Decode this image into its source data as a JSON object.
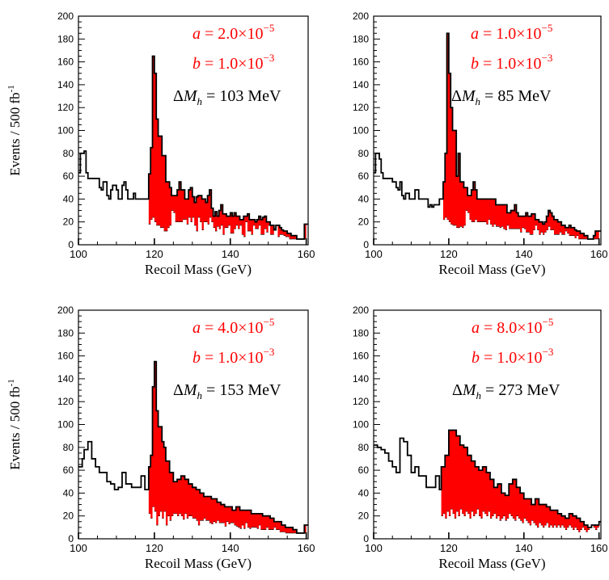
{
  "chart_data": [
    {
      "type": "histogram",
      "id": "tl",
      "xlabel": "Recoil Mass (GeV)",
      "ylabel": "Events / 500 fb",
      "ylabel_sup": "-1",
      "xlim": [
        100,
        160.5
      ],
      "ylim": [
        0,
        200
      ],
      "xticks": [
        100,
        120,
        140,
        160
      ],
      "yticks": [
        0,
        20,
        40,
        60,
        80,
        100,
        120,
        140,
        160,
        180,
        200
      ],
      "annotations": {
        "a_sym": "a",
        "a_eq": " = 2.0×10",
        "a_exp": "−5",
        "b_sym": "b",
        "b_eq": " = 1.0×10",
        "b_exp": "−3",
        "dm_pre": "ΔM",
        "dm_sub": "h",
        "dm_eq": " = 103 MeV"
      },
      "bin_width": 0.5,
      "signal_range": [
        118,
        160.5
      ],
      "total": [
        63,
        80,
        80,
        82,
        63,
        58,
        58,
        58,
        58,
        58,
        58,
        50,
        48,
        55,
        55,
        43,
        40,
        48,
        52,
        52,
        48,
        40,
        40,
        52,
        55,
        48,
        40,
        40,
        40,
        45,
        40,
        40,
        40,
        40,
        40,
        40,
        40,
        62,
        85,
        165,
        150,
        110,
        95,
        95,
        78,
        78,
        55,
        55,
        50,
        43,
        43,
        43,
        48,
        55,
        48,
        48,
        40,
        40,
        48,
        50,
        42,
        37,
        42,
        43,
        43,
        40,
        40,
        37,
        43,
        48,
        32,
        25,
        29,
        25,
        30,
        35,
        27,
        27,
        25,
        25,
        28,
        25,
        28,
        25,
        25,
        22,
        22,
        25,
        25,
        27,
        22,
        22,
        22,
        20,
        22,
        25,
        22,
        24,
        25,
        20,
        20,
        17,
        17,
        13,
        17,
        17,
        15,
        13,
        12,
        12,
        10,
        10,
        8,
        8,
        8,
        5,
        5,
        5,
        5,
        18,
        18
      ],
      "background": [
        63,
        80,
        80,
        82,
        63,
        58,
        58,
        58,
        58,
        58,
        58,
        50,
        48,
        55,
        55,
        43,
        40,
        48,
        52,
        52,
        48,
        40,
        40,
        52,
        55,
        48,
        40,
        40,
        40,
        45,
        40,
        40,
        40,
        40,
        40,
        40,
        40,
        18,
        22,
        24,
        20,
        17,
        17,
        15,
        15,
        12,
        12,
        15,
        17,
        30,
        28,
        20,
        20,
        20,
        20,
        22,
        22,
        18,
        24,
        20,
        24,
        17,
        12,
        24,
        20,
        13,
        20,
        20,
        18,
        24,
        20,
        15,
        12,
        16,
        14,
        17,
        9,
        15,
        15,
        17,
        10,
        10,
        14,
        17,
        14,
        17,
        9,
        7,
        20,
        12,
        12,
        9,
        17,
        14,
        14,
        17,
        9,
        9,
        14,
        11,
        17,
        9,
        9,
        14,
        17,
        7,
        9,
        9,
        8,
        7,
        7,
        5,
        5,
        5,
        5,
        5,
        5,
        5,
        5,
        5,
        18
      ]
    },
    {
      "type": "histogram",
      "id": "tr",
      "xlabel": "Recoil Mass (GeV)",
      "ylabel": "",
      "ylabel_sup": "",
      "xlim": [
        100,
        160.5
      ],
      "ylim": [
        0,
        200
      ],
      "xticks": [
        100,
        120,
        140,
        160
      ],
      "yticks": [
        0,
        20,
        40,
        60,
        80,
        100,
        120,
        140,
        160,
        180,
        200
      ],
      "annotations": {
        "a_sym": "a",
        "a_eq": " = 1.0×10",
        "a_exp": "−5",
        "b_sym": "b",
        "b_eq": " = 1.0×10",
        "b_exp": "−3",
        "dm_pre": "ΔM",
        "dm_sub": "h",
        "dm_eq": " = 85 MeV"
      },
      "bin_width": 0.5,
      "signal_range": [
        117.5,
        160.5
      ],
      "total": [
        63,
        80,
        80,
        75,
        63,
        58,
        58,
        58,
        58,
        58,
        55,
        55,
        50,
        48,
        55,
        43,
        40,
        45,
        45,
        40,
        40,
        40,
        48,
        48,
        40,
        40,
        40,
        40,
        40,
        33,
        35,
        33,
        35,
        35,
        35,
        40,
        40,
        55,
        80,
        185,
        150,
        120,
        100,
        100,
        60,
        80,
        55,
        55,
        50,
        50,
        43,
        43,
        48,
        55,
        48,
        40,
        40,
        40,
        40,
        40,
        40,
        40,
        40,
        40,
        40,
        35,
        35,
        35,
        35,
        35,
        35,
        28,
        28,
        30,
        30,
        35,
        28,
        25,
        25,
        25,
        25,
        28,
        25,
        25,
        27,
        27,
        22,
        22,
        20,
        20,
        18,
        20,
        25,
        30,
        28,
        25,
        22,
        22,
        20,
        20,
        17,
        17,
        15,
        15,
        17,
        15,
        15,
        13,
        12,
        12,
        10,
        10,
        8,
        8,
        5,
        5,
        5,
        8,
        12,
        12,
        12
      ],
      "background": [
        63,
        80,
        80,
        75,
        63,
        58,
        58,
        58,
        58,
        58,
        55,
        55,
        50,
        48,
        55,
        43,
        40,
        45,
        45,
        40,
        40,
        40,
        48,
        48,
        40,
        40,
        40,
        40,
        40,
        33,
        35,
        33,
        35,
        35,
        35,
        40,
        40,
        22,
        24,
        22,
        20,
        18,
        17,
        17,
        15,
        15,
        16,
        15,
        17,
        30,
        28,
        22,
        20,
        20,
        22,
        20,
        20,
        20,
        20,
        20,
        18,
        22,
        18,
        16,
        18,
        16,
        16,
        15,
        16,
        14,
        13,
        17,
        14,
        14,
        14,
        14,
        14,
        14,
        11,
        15,
        14,
        11,
        11,
        9,
        9,
        13,
        17,
        13,
        9,
        11,
        9,
        11,
        13,
        16,
        13,
        13,
        9,
        9,
        9,
        11,
        9,
        9,
        12,
        10,
        8,
        8,
        8,
        6,
        8,
        5,
        5,
        5,
        5,
        5,
        5,
        5,
        5,
        5,
        5,
        5,
        12
      ]
    },
    {
      "type": "histogram",
      "id": "bl",
      "xlabel": "Recoil Mass (GeV)",
      "ylabel": "Events / 500 fb",
      "ylabel_sup": "-1",
      "xlim": [
        100,
        160.5
      ],
      "ylim": [
        0,
        200
      ],
      "xticks": [
        100,
        120,
        140,
        160
      ],
      "yticks": [
        0,
        20,
        40,
        60,
        80,
        100,
        120,
        140,
        160,
        180,
        200
      ],
      "annotations": {
        "a_sym": "a",
        "a_eq": " = 4.0×10",
        "a_exp": "−5",
        "b_sym": "b",
        "b_eq": " = 1.0×10",
        "b_exp": "−3",
        "dm_pre": "ΔM",
        "dm_sub": "h",
        "dm_eq": " = 153 MeV"
      },
      "bin_width": 0.5,
      "signal_range": [
        118,
        160.5
      ],
      "total": [
        63,
        63,
        70,
        78,
        78,
        85,
        85,
        70,
        70,
        63,
        63,
        58,
        58,
        58,
        58,
        50,
        50,
        48,
        48,
        43,
        43,
        45,
        45,
        58,
        58,
        48,
        48,
        48,
        45,
        45,
        45,
        45,
        45,
        55,
        55,
        43,
        43,
        63,
        73,
        133,
        155,
        112,
        98,
        98,
        85,
        80,
        68,
        68,
        58,
        58,
        50,
        50,
        52,
        52,
        55,
        55,
        52,
        52,
        48,
        48,
        45,
        45,
        43,
        43,
        40,
        40,
        37,
        37,
        37,
        37,
        35,
        35,
        35,
        32,
        32,
        30,
        30,
        28,
        28,
        28,
        28,
        25,
        25,
        28,
        28,
        25,
        25,
        25,
        25,
        25,
        25,
        22,
        22,
        22,
        22,
        22,
        22,
        20,
        20,
        20,
        20,
        18,
        18,
        15,
        15,
        15,
        15,
        12,
        12,
        10,
        10,
        10,
        10,
        8,
        8,
        5,
        5,
        5,
        5,
        12,
        12
      ],
      "background": [
        63,
        63,
        70,
        78,
        78,
        85,
        85,
        70,
        70,
        63,
        63,
        58,
        58,
        58,
        58,
        50,
        50,
        48,
        48,
        43,
        43,
        45,
        45,
        58,
        58,
        48,
        48,
        48,
        45,
        45,
        45,
        45,
        45,
        55,
        55,
        43,
        43,
        22,
        18,
        28,
        24,
        12,
        20,
        24,
        18,
        24,
        12,
        20,
        16,
        20,
        22,
        22,
        20,
        22,
        20,
        17,
        22,
        18,
        20,
        20,
        18,
        18,
        16,
        12,
        16,
        16,
        18,
        16,
        16,
        14,
        13,
        15,
        14,
        16,
        14,
        14,
        14,
        11,
        15,
        13,
        14,
        14,
        12,
        11,
        10,
        9,
        12,
        9,
        14,
        10,
        9,
        10,
        10,
        10,
        9,
        12,
        8,
        8,
        8,
        10,
        8,
        8,
        8,
        10,
        8,
        8,
        6,
        6,
        6,
        5,
        5,
        5,
        5,
        5,
        5,
        5,
        5,
        5,
        5,
        5,
        12
      ]
    },
    {
      "type": "histogram",
      "id": "br",
      "xlabel": "Recoil Mass (GeV)",
      "ylabel": "",
      "ylabel_sup": "",
      "xlim": [
        100,
        160.5
      ],
      "ylim": [
        0,
        200
      ],
      "xticks": [
        100,
        120,
        140,
        160
      ],
      "yticks": [
        0,
        20,
        40,
        60,
        80,
        100,
        120,
        140,
        160,
        180,
        200
      ],
      "annotations": {
        "a_sym": "a",
        "a_eq": " = 8.0×10",
        "a_exp": "−5",
        "b_sym": "b",
        "b_eq": " = 1.0×10",
        "b_exp": "−3",
        "dm_pre": "ΔM",
        "dm_sub": "h",
        "dm_eq": " = 273 MeV"
      },
      "bin_width": 0.5,
      "signal_range": [
        116,
        160.5
      ],
      "total": [
        82,
        82,
        80,
        80,
        78,
        78,
        75,
        75,
        68,
        68,
        63,
        63,
        58,
        58,
        88,
        88,
        85,
        85,
        73,
        73,
        58,
        58,
        63,
        63,
        55,
        55,
        55,
        55,
        45,
        45,
        45,
        45,
        45,
        55,
        55,
        43,
        63,
        63,
        73,
        73,
        95,
        95,
        95,
        95,
        90,
        90,
        82,
        82,
        80,
        80,
        73,
        73,
        68,
        68,
        63,
        63,
        60,
        60,
        63,
        63,
        58,
        58,
        52,
        52,
        45,
        45,
        48,
        48,
        40,
        40,
        38,
        38,
        48,
        48,
        52,
        52,
        45,
        45,
        40,
        40,
        35,
        35,
        35,
        35,
        30,
        30,
        35,
        35,
        30,
        30,
        30,
        30,
        28,
        28,
        25,
        25,
        25,
        25,
        22,
        22,
        20,
        20,
        18,
        18,
        22,
        22,
        20,
        20,
        18,
        18,
        15,
        15,
        12,
        12,
        10,
        10,
        12,
        12,
        12,
        12,
        15
      ],
      "background": [
        82,
        82,
        80,
        80,
        78,
        78,
        75,
        75,
        68,
        68,
        63,
        63,
        58,
        58,
        88,
        88,
        85,
        85,
        73,
        73,
        58,
        58,
        63,
        63,
        55,
        55,
        55,
        55,
        45,
        45,
        45,
        45,
        45,
        55,
        55,
        43,
        20,
        22,
        18,
        24,
        20,
        26,
        22,
        18,
        24,
        20,
        26,
        22,
        20,
        24,
        22,
        18,
        24,
        20,
        22,
        26,
        20,
        18,
        24,
        22,
        20,
        24,
        18,
        20,
        22,
        18,
        20,
        16,
        18,
        20,
        16,
        18,
        22,
        20,
        18,
        16,
        20,
        18,
        16,
        14,
        18,
        16,
        14,
        12,
        16,
        14,
        12,
        10,
        14,
        12,
        10,
        12,
        14,
        10,
        12,
        10,
        12,
        10,
        12,
        10,
        12,
        10,
        8,
        10,
        12,
        10,
        8,
        10,
        8,
        6,
        8,
        10,
        8,
        6,
        8,
        10,
        12,
        10,
        8,
        10,
        15
      ]
    }
  ]
}
